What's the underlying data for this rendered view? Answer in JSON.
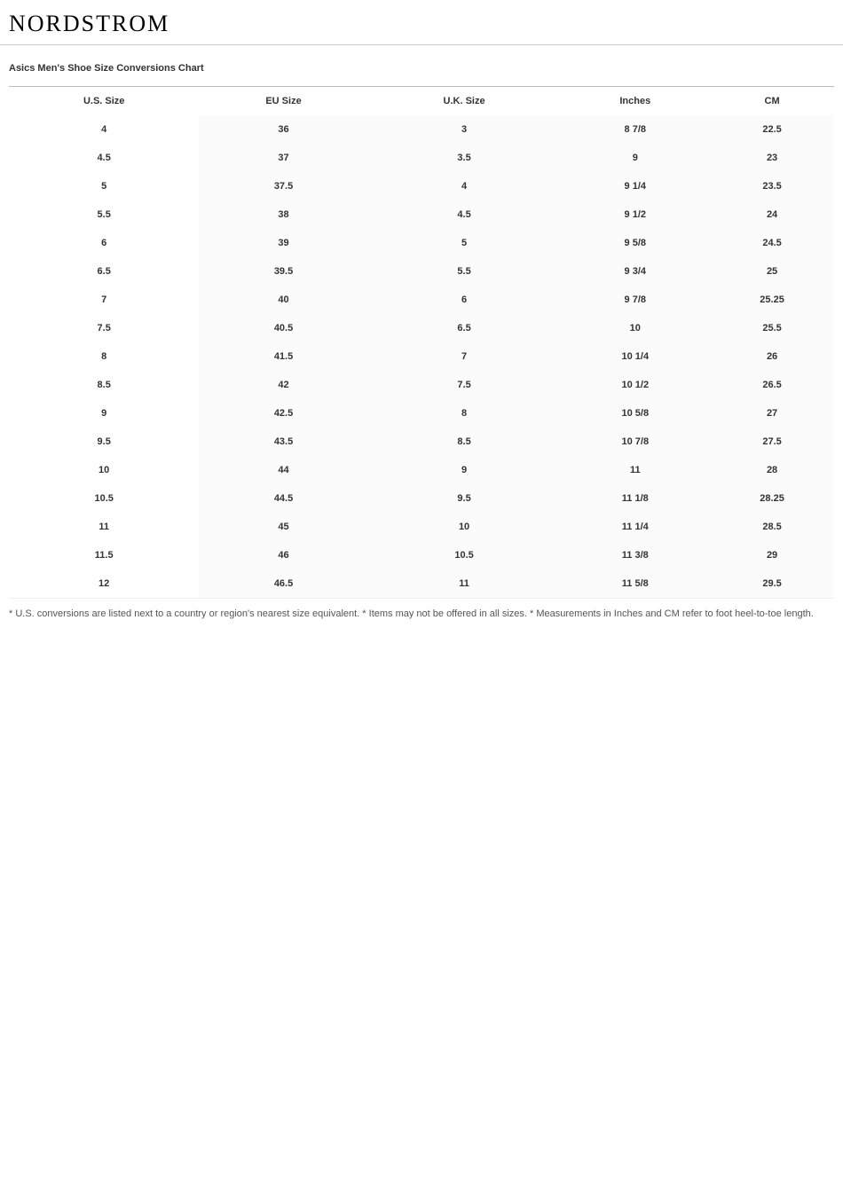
{
  "header": {
    "logo": "NORDSTROM"
  },
  "chart": {
    "title": "Asics Men's Shoe Size Conversions Chart",
    "columns": [
      "U.S. Size",
      "EU Size",
      "U.K. Size",
      "Inches",
      "CM"
    ],
    "rows": [
      [
        "4",
        "36",
        "3",
        "8 7/8",
        "22.5"
      ],
      [
        "4.5",
        "37",
        "3.5",
        "9",
        "23"
      ],
      [
        "5",
        "37.5",
        "4",
        "9 1/4",
        "23.5"
      ],
      [
        "5.5",
        "38",
        "4.5",
        "9 1/2",
        "24"
      ],
      [
        "6",
        "39",
        "5",
        "9 5/8",
        "24.5"
      ],
      [
        "6.5",
        "39.5",
        "5.5",
        "9 3/4",
        "25"
      ],
      [
        "7",
        "40",
        "6",
        "9 7/8",
        "25.25"
      ],
      [
        "7.5",
        "40.5",
        "6.5",
        "10",
        "25.5"
      ],
      [
        "8",
        "41.5",
        "7",
        "10 1/4",
        "26"
      ],
      [
        "8.5",
        "42",
        "7.5",
        "10 1/2",
        "26.5"
      ],
      [
        "9",
        "42.5",
        "8",
        "10 5/8",
        "27"
      ],
      [
        "9.5",
        "43.5",
        "8.5",
        "10 7/8",
        "27.5"
      ],
      [
        "10",
        "44",
        "9",
        "11",
        "28"
      ],
      [
        "10.5",
        "44.5",
        "9.5",
        "11 1/8",
        "28.25"
      ],
      [
        "11",
        "45",
        "10",
        "11 1/4",
        "28.5"
      ],
      [
        "11.5",
        "46",
        "10.5",
        "11 3/8",
        "29"
      ],
      [
        "12",
        "46.5",
        "11",
        "11 5/8",
        "29.5"
      ]
    ]
  },
  "footnote": "* U.S. conversions are listed next to a country or region's nearest size equivalent. * Items may not be offered in all sizes. * Measurements in Inches and CM refer to foot heel-to-toe length."
}
